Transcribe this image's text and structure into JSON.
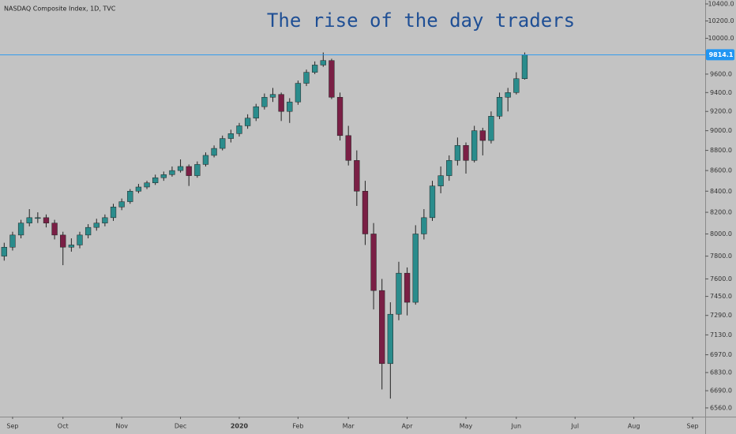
{
  "chart_data": {
    "type": "candlestick",
    "source": "NASDAQ Composite Index, 1D, TVC",
    "title": "The rise of the day traders",
    "log_scale": true,
    "grid": false,
    "up_color": "#2a8c8c",
    "down_color": "#7a1f45",
    "ylim": [
      6495,
      10447
    ],
    "yticks": [
      {
        "value": 6560,
        "label": "6560.0"
      },
      {
        "value": 6690,
        "label": "6690.0"
      },
      {
        "value": 6830,
        "label": "6830.0"
      },
      {
        "value": 6970,
        "label": "6970.0"
      },
      {
        "value": 7130,
        "label": "7130.0"
      },
      {
        "value": 7290,
        "label": "7290.0"
      },
      {
        "value": 7450,
        "label": "7450.0"
      },
      {
        "value": 7600,
        "label": "7600.0"
      },
      {
        "value": 7800,
        "label": "7800.0"
      },
      {
        "value": 8000,
        "label": "8000.0"
      },
      {
        "value": 8200,
        "label": "8200.0"
      },
      {
        "value": 8400,
        "label": "8400.0"
      },
      {
        "value": 8600,
        "label": "8600.0"
      },
      {
        "value": 8800,
        "label": "8800.0"
      },
      {
        "value": 9000,
        "label": "9000.0"
      },
      {
        "value": 9200,
        "label": "9200.0"
      },
      {
        "value": 9400,
        "label": "9400.0"
      },
      {
        "value": 9600,
        "label": "9600.0"
      },
      {
        "value": 10000,
        "label": "10000.0"
      },
      {
        "value": 10200,
        "label": "10200.0"
      },
      {
        "value": 10400,
        "label": "10400.0"
      }
    ],
    "last_price": 9814.1,
    "last_price_color": "#2196f3",
    "categories": [
      null,
      "Sep",
      null,
      null,
      null,
      null,
      null,
      "Oct",
      null,
      null,
      null,
      null,
      null,
      null,
      "Nov",
      null,
      null,
      null,
      null,
      null,
      null,
      "Dec",
      null,
      null,
      null,
      null,
      null,
      null,
      "2020",
      null,
      null,
      null,
      null,
      null,
      null,
      "Feb",
      null,
      null,
      null,
      null,
      null,
      "Mar",
      null,
      null,
      null,
      null,
      null,
      null,
      "Apr",
      null,
      null,
      null,
      null,
      null,
      null,
      "May",
      null,
      null,
      null,
      null,
      null,
      "Jun",
      null,
      null,
      null,
      null,
      null,
      null,
      "Jul",
      null,
      null,
      null,
      null,
      null,
      null,
      "Aug",
      null,
      null,
      null,
      null,
      null,
      null,
      "Sep",
      null
    ],
    "open": [
      7800,
      7880,
      7990,
      8100,
      8150,
      8150,
      8100,
      7990,
      7880,
      7900,
      7990,
      8060,
      8100,
      8150,
      8250,
      8300,
      8400,
      8440,
      8480,
      8530,
      8560,
      8600,
      8640,
      8550,
      8660,
      8750,
      8820,
      8920,
      8970,
      9050,
      9130,
      9250,
      9350,
      9380,
      9200,
      9300,
      9500,
      9620,
      9700,
      9750,
      9350,
      8950,
      8700,
      8400,
      8000,
      7500,
      6900,
      7300,
      7650,
      7400,
      8000,
      8150,
      8450,
      8550,
      8700,
      8850,
      8700,
      9000,
      8900,
      9150,
      9350,
      9400,
      9550,
      null,
      null,
      null,
      null,
      null,
      null,
      null,
      null,
      null,
      null,
      null,
      null,
      null,
      null,
      null,
      null,
      null,
      null,
      null,
      null,
      null
    ],
    "high": [
      7920,
      8020,
      8130,
      8230,
      8200,
      8180,
      8130,
      8020,
      7960,
      8020,
      8090,
      8140,
      8180,
      8280,
      8330,
      8420,
      8470,
      8500,
      8560,
      8590,
      8640,
      8710,
      8660,
      8690,
      8780,
      8850,
      8950,
      9010,
      9080,
      9170,
      9280,
      9390,
      9450,
      9400,
      9340,
      9530,
      9650,
      9740,
      9840,
      9770,
      9400,
      9050,
      8800,
      8500,
      8100,
      7600,
      7400,
      7750,
      7700,
      8080,
      8230,
      8500,
      8640,
      8750,
      8930,
      8880,
      9050,
      9030,
      9200,
      9400,
      9450,
      9620,
      9840,
      null,
      null,
      null,
      null,
      null,
      null,
      null,
      null,
      null,
      null,
      null,
      null,
      null,
      null,
      null,
      null,
      null,
      null,
      null,
      null,
      null
    ],
    "low": [
      7760,
      7850,
      7960,
      8070,
      8100,
      8060,
      7950,
      7720,
      7840,
      7870,
      7960,
      8030,
      8070,
      8120,
      8220,
      8280,
      8380,
      8420,
      8460,
      8500,
      8540,
      8580,
      8450,
      8530,
      8640,
      8730,
      8800,
      8880,
      8940,
      9020,
      9100,
      9220,
      9300,
      9100,
      9080,
      9270,
      9470,
      9600,
      9680,
      9330,
      8900,
      8650,
      8260,
      7900,
      7340,
      6700,
      6630,
      7250,
      7290,
      7380,
      7950,
      8120,
      8380,
      8500,
      8650,
      8570,
      8680,
      8750,
      8870,
      9120,
      9200,
      9380,
      9540,
      null,
      null,
      null,
      null,
      null,
      null,
      null,
      null,
      null,
      null,
      null,
      null,
      null,
      null,
      null,
      null,
      null,
      null,
      null,
      null,
      null
    ],
    "close": [
      7880,
      7990,
      8100,
      8150,
      8150,
      8100,
      7990,
      7880,
      7900,
      7990,
      8060,
      8100,
      8150,
      8250,
      8300,
      8400,
      8440,
      8480,
      8530,
      8560,
      8600,
      8640,
      8550,
      8660,
      8750,
      8820,
      8920,
      8970,
      9050,
      9130,
      9250,
      9350,
      9380,
      9200,
      9300,
      9500,
      9620,
      9700,
      9750,
      9350,
      8950,
      8700,
      8400,
      8000,
      7500,
      6900,
      7300,
      7650,
      7400,
      8000,
      8150,
      8450,
      8550,
      8700,
      8850,
      8700,
      9000,
      8900,
      9150,
      9350,
      9400,
      9550,
      9814,
      null,
      null,
      null,
      null,
      null,
      null,
      null,
      null,
      null,
      null,
      null,
      null,
      null,
      null,
      null,
      null,
      null,
      null,
      null,
      null,
      null
    ]
  }
}
